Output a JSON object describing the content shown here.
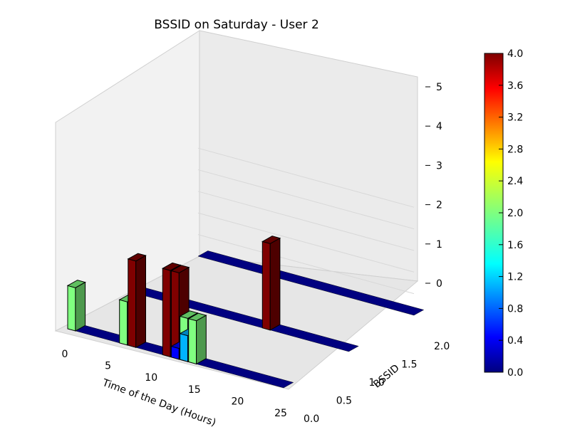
{
  "chart_data": {
    "type": "bar3d",
    "title": "BSSID on Saturday - User 2",
    "xlabel": "Time of the Day (Hours)",
    "ylabel": "BSSID",
    "zlabel": "",
    "xlim": [
      0,
      25
    ],
    "ylim": [
      0,
      2
    ],
    "zlim": [
      0,
      5
    ],
    "x_ticks": [
      "0",
      "5",
      "10",
      "15",
      "20",
      "25"
    ],
    "y_ticks": [
      "0.0",
      "0.5",
      "1.0",
      "1.5",
      "2.0"
    ],
    "z_ticks": [
      "0",
      "1",
      "2",
      "3",
      "4",
      "5"
    ],
    "colorbar": {
      "min": 0.0,
      "max": 4.0,
      "ticks": [
        "0.0",
        "0.4",
        "0.8",
        "1.2",
        "1.6",
        "2.0",
        "2.4",
        "2.8",
        "3.2",
        "3.6",
        "4.0"
      ],
      "colormap": "jet"
    },
    "bars": [
      {
        "x": 0,
        "y": 0,
        "value": 2
      },
      {
        "x": 6,
        "y": 0,
        "value": 2
      },
      {
        "x": 7,
        "y": 0,
        "value": 4
      },
      {
        "x": 11,
        "y": 0,
        "value": 4
      },
      {
        "x": 12,
        "y": 0,
        "value": 4
      },
      {
        "x": 13,
        "y": 0,
        "value": 2
      },
      {
        "x": 14,
        "y": 0,
        "value": 2
      },
      {
        "x": 15,
        "y": 1,
        "value": 4
      },
      {
        "x": 12,
        "y": 0,
        "value": 0.5
      },
      {
        "x": 13,
        "y": 0,
        "value": 1.2
      }
    ],
    "grid": true
  }
}
